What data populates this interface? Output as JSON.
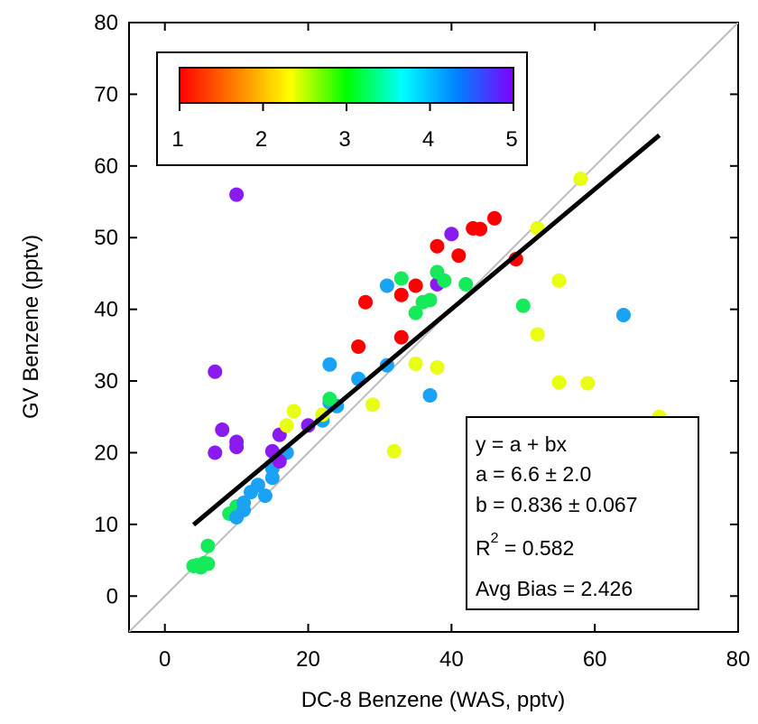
{
  "chart_data": {
    "type": "scatter",
    "title": "",
    "xlabel": "DC-8 Benzene (WAS, pptv)",
    "ylabel": "GV Benzene (pptv)",
    "xlim": [
      -5,
      80
    ],
    "ylim": [
      -5,
      80
    ],
    "xticks": [
      0,
      20,
      40,
      60,
      80
    ],
    "yticks": [
      0,
      10,
      20,
      30,
      40,
      50,
      60,
      70,
      80
    ],
    "grid": false,
    "one_to_one_line": true,
    "fit_line": {
      "a": 6.6,
      "b": 0.836,
      "x_range": [
        4,
        69
      ]
    },
    "colorbar": {
      "min": 1,
      "max": 5,
      "ticks": [
        "1",
        "2",
        "3",
        "4",
        "5"
      ],
      "stops": [
        "#ff0000",
        "#ff8000",
        "#ffff00",
        "#00ff00",
        "#00ffff",
        "#0080ff",
        "#8000ff"
      ]
    },
    "stats": {
      "equation": "y = a + bx",
      "a": "a = 6.6 ± 2.0",
      "b": "b = 0.836 ± 0.067",
      "r2_prefix": "R",
      "r2_sup": "2",
      "r2_value": " = 0.582",
      "bias": "Avg Bias = 2.426"
    },
    "colors": {
      "red": "#ff0000",
      "yellow": "#e8ff14",
      "green": "#15eb5a",
      "blue": "#1aa2f5",
      "purple": "#8a1af0"
    },
    "points": [
      {
        "x": 4,
        "y": 4.2,
        "c": "green"
      },
      {
        "x": 5,
        "y": 4.0,
        "c": "green"
      },
      {
        "x": 5.5,
        "y": 4.6,
        "c": "green"
      },
      {
        "x": 6,
        "y": 4.5,
        "c": "green"
      },
      {
        "x": 6,
        "y": 7.0,
        "c": "green"
      },
      {
        "x": 4.5,
        "y": 4.3,
        "c": "green"
      },
      {
        "x": 9,
        "y": 11.5,
        "c": "green"
      },
      {
        "x": 10,
        "y": 12.5,
        "c": "green"
      },
      {
        "x": 10,
        "y": 11.0,
        "c": "blue"
      },
      {
        "x": 11,
        "y": 12.0,
        "c": "blue"
      },
      {
        "x": 11,
        "y": 13.0,
        "c": "blue"
      },
      {
        "x": 12,
        "y": 14.5,
        "c": "blue"
      },
      {
        "x": 13,
        "y": 15.5,
        "c": "blue"
      },
      {
        "x": 14,
        "y": 14.0,
        "c": "blue"
      },
      {
        "x": 15,
        "y": 16.5,
        "c": "blue"
      },
      {
        "x": 15,
        "y": 17.8,
        "c": "blue"
      },
      {
        "x": 16,
        "y": 19.5,
        "c": "blue"
      },
      {
        "x": 17,
        "y": 20.0,
        "c": "blue"
      },
      {
        "x": 22,
        "y": 24.5,
        "c": "blue"
      },
      {
        "x": 23,
        "y": 32.3,
        "c": "blue"
      },
      {
        "x": 23,
        "y": 27.0,
        "c": "blue"
      },
      {
        "x": 24,
        "y": 26.5,
        "c": "blue"
      },
      {
        "x": 27,
        "y": 30.3,
        "c": "blue"
      },
      {
        "x": 31,
        "y": 32.2,
        "c": "blue"
      },
      {
        "x": 31,
        "y": 43.3,
        "c": "blue"
      },
      {
        "x": 37,
        "y": 28.0,
        "c": "blue"
      },
      {
        "x": 64,
        "y": 39.2,
        "c": "blue"
      },
      {
        "x": 10,
        "y": 56.0,
        "c": "purple"
      },
      {
        "x": 7,
        "y": 31.3,
        "c": "purple"
      },
      {
        "x": 8,
        "y": 23.2,
        "c": "purple"
      },
      {
        "x": 7,
        "y": 20.0,
        "c": "purple"
      },
      {
        "x": 10,
        "y": 21.5,
        "c": "purple"
      },
      {
        "x": 10,
        "y": 20.8,
        "c": "purple"
      },
      {
        "x": 15,
        "y": 20.2,
        "c": "purple"
      },
      {
        "x": 16,
        "y": 22.5,
        "c": "purple"
      },
      {
        "x": 16,
        "y": 18.8,
        "c": "purple"
      },
      {
        "x": 20,
        "y": 23.8,
        "c": "purple"
      },
      {
        "x": 38,
        "y": 43.5,
        "c": "purple"
      },
      {
        "x": 40,
        "y": 50.5,
        "c": "purple"
      },
      {
        "x": 17,
        "y": 23.8,
        "c": "yellow"
      },
      {
        "x": 18,
        "y": 25.8,
        "c": "yellow"
      },
      {
        "x": 22,
        "y": 25.3,
        "c": "yellow"
      },
      {
        "x": 29,
        "y": 26.7,
        "c": "yellow"
      },
      {
        "x": 32,
        "y": 20.2,
        "c": "yellow"
      },
      {
        "x": 35,
        "y": 32.4,
        "c": "yellow"
      },
      {
        "x": 38,
        "y": 31.9,
        "c": "yellow"
      },
      {
        "x": 52,
        "y": 51.3,
        "c": "yellow"
      },
      {
        "x": 52,
        "y": 36.5,
        "c": "yellow"
      },
      {
        "x": 55,
        "y": 44.0,
        "c": "yellow"
      },
      {
        "x": 55,
        "y": 29.8,
        "c": "yellow"
      },
      {
        "x": 58,
        "y": 58.2,
        "c": "yellow"
      },
      {
        "x": 59,
        "y": 29.7,
        "c": "yellow"
      },
      {
        "x": 69,
        "y": 25.0,
        "c": "yellow"
      },
      {
        "x": 23,
        "y": 27.5,
        "c": "green"
      },
      {
        "x": 33,
        "y": 44.3,
        "c": "green"
      },
      {
        "x": 35,
        "y": 39.5,
        "c": "green"
      },
      {
        "x": 36,
        "y": 41.0,
        "c": "green"
      },
      {
        "x": 37,
        "y": 41.3,
        "c": "green"
      },
      {
        "x": 38,
        "y": 45.2,
        "c": "green"
      },
      {
        "x": 39,
        "y": 44.0,
        "c": "green"
      },
      {
        "x": 42,
        "y": 43.5,
        "c": "green"
      },
      {
        "x": 50,
        "y": 40.5,
        "c": "green"
      },
      {
        "x": 27,
        "y": 34.8,
        "c": "red"
      },
      {
        "x": 28,
        "y": 41.0,
        "c": "red"
      },
      {
        "x": 33,
        "y": 42.0,
        "c": "red"
      },
      {
        "x": 33,
        "y": 36.1,
        "c": "red"
      },
      {
        "x": 35,
        "y": 43.3,
        "c": "red"
      },
      {
        "x": 38,
        "y": 48.8,
        "c": "red"
      },
      {
        "x": 41,
        "y": 47.5,
        "c": "red"
      },
      {
        "x": 43,
        "y": 51.3,
        "c": "red"
      },
      {
        "x": 44,
        "y": 51.2,
        "c": "red"
      },
      {
        "x": 46,
        "y": 52.7,
        "c": "red"
      },
      {
        "x": 49,
        "y": 47.0,
        "c": "red"
      }
    ]
  }
}
